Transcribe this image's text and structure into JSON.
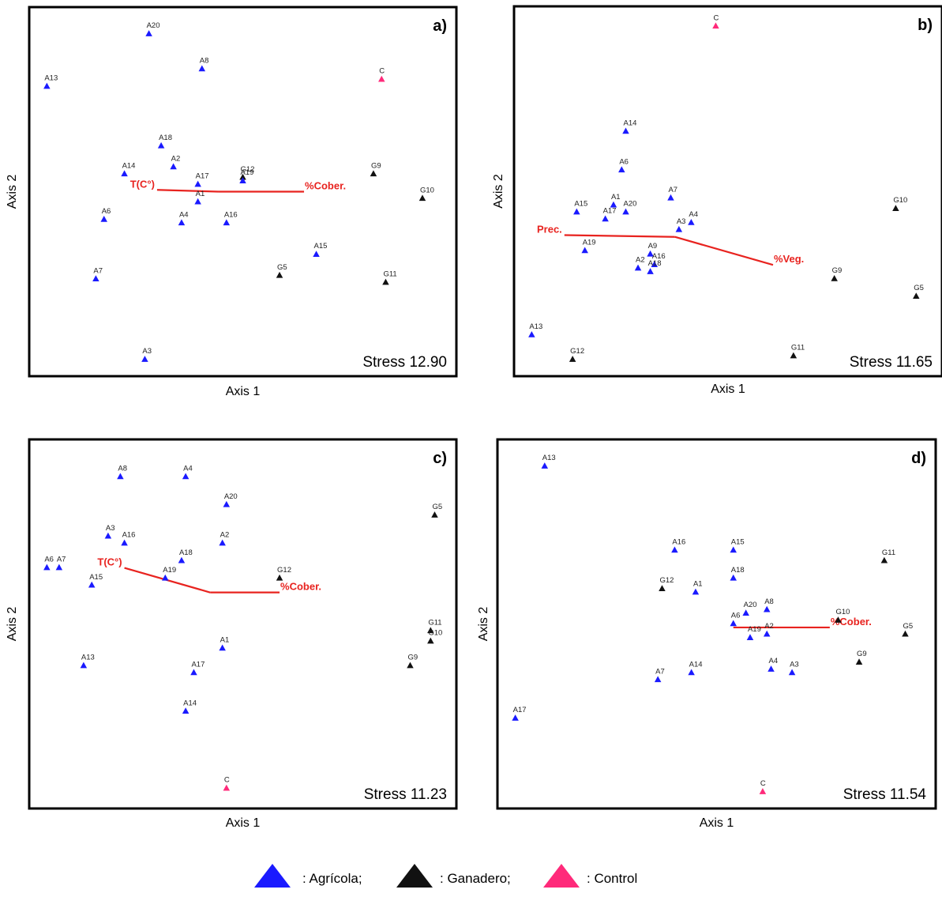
{
  "colors": {
    "agricola": "#1a1aff",
    "ganadero": "#111111",
    "control": "#ff2a7a",
    "vector": "#e8231f"
  },
  "legend": [
    {
      "group": "agricola",
      "label": ": Agrícola;"
    },
    {
      "group": "ganadero",
      "label": ": Ganadero;"
    },
    {
      "group": "control",
      "label": ": Control"
    }
  ],
  "chart_data": [
    {
      "type": "scatter",
      "panel_label": "a)",
      "stress": "Stress 12.90",
      "xlabel": "Axis 1",
      "ylabel": "Axis 2",
      "xlim": [
        0,
        100
      ],
      "ylim": [
        0,
        100
      ],
      "points": [
        {
          "label": "A20",
          "group": "agricola",
          "x": 27,
          "y": 95
        },
        {
          "label": "A8",
          "group": "agricola",
          "x": 40,
          "y": 85
        },
        {
          "label": "A13",
          "group": "agricola",
          "x": 2,
          "y": 80
        },
        {
          "label": "C",
          "group": "control",
          "x": 84,
          "y": 82
        },
        {
          "label": "A18",
          "group": "agricola",
          "x": 30,
          "y": 63
        },
        {
          "label": "A2",
          "group": "agricola",
          "x": 33,
          "y": 57
        },
        {
          "label": "A14",
          "group": "agricola",
          "x": 21,
          "y": 55
        },
        {
          "label": "A17",
          "group": "agricola",
          "x": 39,
          "y": 52
        },
        {
          "label": "G12",
          "group": "ganadero",
          "x": 50,
          "y": 54
        },
        {
          "label": "A19",
          "group": "agricola",
          "x": 50,
          "y": 53
        },
        {
          "label": "G9",
          "group": "ganadero",
          "x": 82,
          "y": 55
        },
        {
          "label": "A1",
          "group": "agricola",
          "x": 39,
          "y": 47
        },
        {
          "label": "G10",
          "group": "ganadero",
          "x": 94,
          "y": 48
        },
        {
          "label": "A6",
          "group": "agricola",
          "x": 16,
          "y": 42
        },
        {
          "label": "A4",
          "group": "agricola",
          "x": 35,
          "y": 41
        },
        {
          "label": "A16",
          "group": "agricola",
          "x": 46,
          "y": 41
        },
        {
          "label": "A15",
          "group": "agricola",
          "x": 68,
          "y": 32
        },
        {
          "label": "A7",
          "group": "agricola",
          "x": 14,
          "y": 25
        },
        {
          "label": "G5",
          "group": "ganadero",
          "x": 59,
          "y": 26
        },
        {
          "label": "G11",
          "group": "ganadero",
          "x": 85,
          "y": 24
        },
        {
          "label": "A3",
          "group": "agricola",
          "x": 26,
          "y": 2
        }
      ],
      "vectors": [
        {
          "label": "T(C°)",
          "x1": 44,
          "y1": 50,
          "x2": 29,
          "y2": 50.5,
          "anchor": "end"
        },
        {
          "label": "%Cober.",
          "x1": 44,
          "y1": 50,
          "x2": 65,
          "y2": 50,
          "anchor": "start"
        }
      ]
    },
    {
      "type": "scatter",
      "panel_label": "b)",
      "stress": "Stress 11.65",
      "xlabel": "Axis 1",
      "ylabel": "Axis 2",
      "xlim": [
        0,
        100
      ],
      "ylim": [
        0,
        100
      ],
      "points": [
        {
          "label": "C",
          "group": "control",
          "x": 47,
          "y": 97
        },
        {
          "label": "A14",
          "group": "agricola",
          "x": 25,
          "y": 67
        },
        {
          "label": "A6",
          "group": "agricola",
          "x": 24,
          "y": 56
        },
        {
          "label": "A7",
          "group": "agricola",
          "x": 36,
          "y": 48
        },
        {
          "label": "A1",
          "group": "agricola",
          "x": 22,
          "y": 46
        },
        {
          "label": "A15",
          "group": "agricola",
          "x": 13,
          "y": 44
        },
        {
          "label": "A17",
          "group": "agricola",
          "x": 20,
          "y": 42
        },
        {
          "label": "A20",
          "group": "agricola",
          "x": 25,
          "y": 44
        },
        {
          "label": "A4",
          "group": "agricola",
          "x": 41,
          "y": 41
        },
        {
          "label": "A3",
          "group": "agricola",
          "x": 38,
          "y": 39
        },
        {
          "label": "G10",
          "group": "ganadero",
          "x": 91,
          "y": 45
        },
        {
          "label": "A19",
          "group": "agricola",
          "x": 15,
          "y": 33
        },
        {
          "label": "A9",
          "group": "agricola",
          "x": 31,
          "y": 32
        },
        {
          "label": "A2",
          "group": "agricola",
          "x": 28,
          "y": 28
        },
        {
          "label": "A16",
          "group": "agricola",
          "x": 32,
          "y": 29
        },
        {
          "label": "A18",
          "group": "agricola",
          "x": 31,
          "y": 27
        },
        {
          "label": "G9",
          "group": "ganadero",
          "x": 76,
          "y": 25
        },
        {
          "label": "G5",
          "group": "ganadero",
          "x": 96,
          "y": 20
        },
        {
          "label": "A13",
          "group": "agricola",
          "x": 2,
          "y": 9
        },
        {
          "label": "G12",
          "group": "ganadero",
          "x": 12,
          "y": 2
        },
        {
          "label": "G11",
          "group": "ganadero",
          "x": 66,
          "y": 3
        }
      ],
      "vectors": [
        {
          "label": "Prec.",
          "x1": 37,
          "y1": 37,
          "x2": 10,
          "y2": 37.5,
          "anchor": "end"
        },
        {
          "label": "%Veg.",
          "x1": 37,
          "y1": 37,
          "x2": 61,
          "y2": 29,
          "anchor": "start"
        }
      ]
    },
    {
      "type": "scatter",
      "panel_label": "c)",
      "stress": "Stress 11.23",
      "xlabel": "Axis 1",
      "ylabel": "Axis 2",
      "xlim": [
        0,
        100
      ],
      "ylim": [
        0,
        100
      ],
      "points": [
        {
          "label": "A8",
          "group": "agricola",
          "x": 20,
          "y": 92
        },
        {
          "label": "A4",
          "group": "agricola",
          "x": 36,
          "y": 92
        },
        {
          "label": "A20",
          "group": "agricola",
          "x": 46,
          "y": 84
        },
        {
          "label": "G5",
          "group": "ganadero",
          "x": 97,
          "y": 81
        },
        {
          "label": "A3",
          "group": "agricola",
          "x": 17,
          "y": 75
        },
        {
          "label": "A16",
          "group": "agricola",
          "x": 21,
          "y": 73
        },
        {
          "label": "A2",
          "group": "agricola",
          "x": 45,
          "y": 73
        },
        {
          "label": "A18",
          "group": "agricola",
          "x": 35,
          "y": 68
        },
        {
          "label": "A6",
          "group": "agricola",
          "x": 2,
          "y": 66
        },
        {
          "label": "A7",
          "group": "agricola",
          "x": 5,
          "y": 66
        },
        {
          "label": "A19",
          "group": "agricola",
          "x": 31,
          "y": 63
        },
        {
          "label": "G12",
          "group": "ganadero",
          "x": 59,
          "y": 63
        },
        {
          "label": "A15",
          "group": "agricola",
          "x": 13,
          "y": 61
        },
        {
          "label": "G11",
          "group": "ganadero",
          "x": 96,
          "y": 48
        },
        {
          "label": "G10",
          "group": "ganadero",
          "x": 96,
          "y": 45
        },
        {
          "label": "A1",
          "group": "agricola",
          "x": 45,
          "y": 43
        },
        {
          "label": "G9",
          "group": "ganadero",
          "x": 91,
          "y": 38
        },
        {
          "label": "A13",
          "group": "agricola",
          "x": 11,
          "y": 38
        },
        {
          "label": "A17",
          "group": "agricola",
          "x": 38,
          "y": 36
        },
        {
          "label": "A14",
          "group": "agricola",
          "x": 36,
          "y": 25
        },
        {
          "label": "C",
          "group": "control",
          "x": 46,
          "y": 3
        }
      ],
      "vectors": [
        {
          "label": "T(C°)",
          "x1": 42,
          "y1": 59,
          "x2": 21,
          "y2": 66,
          "anchor": "end"
        },
        {
          "label": "%Cober.",
          "x1": 42,
          "y1": 59,
          "x2": 59,
          "y2": 59,
          "anchor": "start"
        }
      ]
    },
    {
      "type": "scatter",
      "panel_label": "d)",
      "stress": "Stress 11.54",
      "xlabel": "Axis 1",
      "ylabel": "Axis 2",
      "xlim": [
        0,
        100
      ],
      "ylim": [
        0,
        100
      ],
      "points": [
        {
          "label": "A13",
          "group": "agricola",
          "x": 9,
          "y": 95
        },
        {
          "label": "A16",
          "group": "agricola",
          "x": 40,
          "y": 71
        },
        {
          "label": "A15",
          "group": "agricola",
          "x": 54,
          "y": 71
        },
        {
          "label": "G11",
          "group": "ganadero",
          "x": 90,
          "y": 68
        },
        {
          "label": "A18",
          "group": "agricola",
          "x": 54,
          "y": 63
        },
        {
          "label": "G12",
          "group": "ganadero",
          "x": 37,
          "y": 60
        },
        {
          "label": "A1",
          "group": "agricola",
          "x": 45,
          "y": 59
        },
        {
          "label": "A20",
          "group": "agricola",
          "x": 57,
          "y": 53
        },
        {
          "label": "A8",
          "group": "agricola",
          "x": 62,
          "y": 54
        },
        {
          "label": "G10",
          "group": "ganadero",
          "x": 79,
          "y": 51
        },
        {
          "label": "A6",
          "group": "agricola",
          "x": 54,
          "y": 50
        },
        {
          "label": "G5",
          "group": "ganadero",
          "x": 95,
          "y": 47
        },
        {
          "label": "A19",
          "group": "agricola",
          "x": 58,
          "y": 46
        },
        {
          "label": "A2",
          "group": "agricola",
          "x": 62,
          "y": 47
        },
        {
          "label": "G9",
          "group": "ganadero",
          "x": 84,
          "y": 39
        },
        {
          "label": "A4",
          "group": "agricola",
          "x": 63,
          "y": 37
        },
        {
          "label": "A3",
          "group": "agricola",
          "x": 68,
          "y": 36
        },
        {
          "label": "A7",
          "group": "agricola",
          "x": 36,
          "y": 34
        },
        {
          "label": "A14",
          "group": "agricola",
          "x": 44,
          "y": 36
        },
        {
          "label": "A17",
          "group": "agricola",
          "x": 2,
          "y": 23
        },
        {
          "label": "C",
          "group": "control",
          "x": 61,
          "y": 2
        }
      ],
      "vectors": [
        {
          "label": "%Cober.",
          "x1": 54,
          "y1": 49,
          "x2": 77,
          "y2": 49,
          "anchor": "start"
        }
      ]
    }
  ]
}
